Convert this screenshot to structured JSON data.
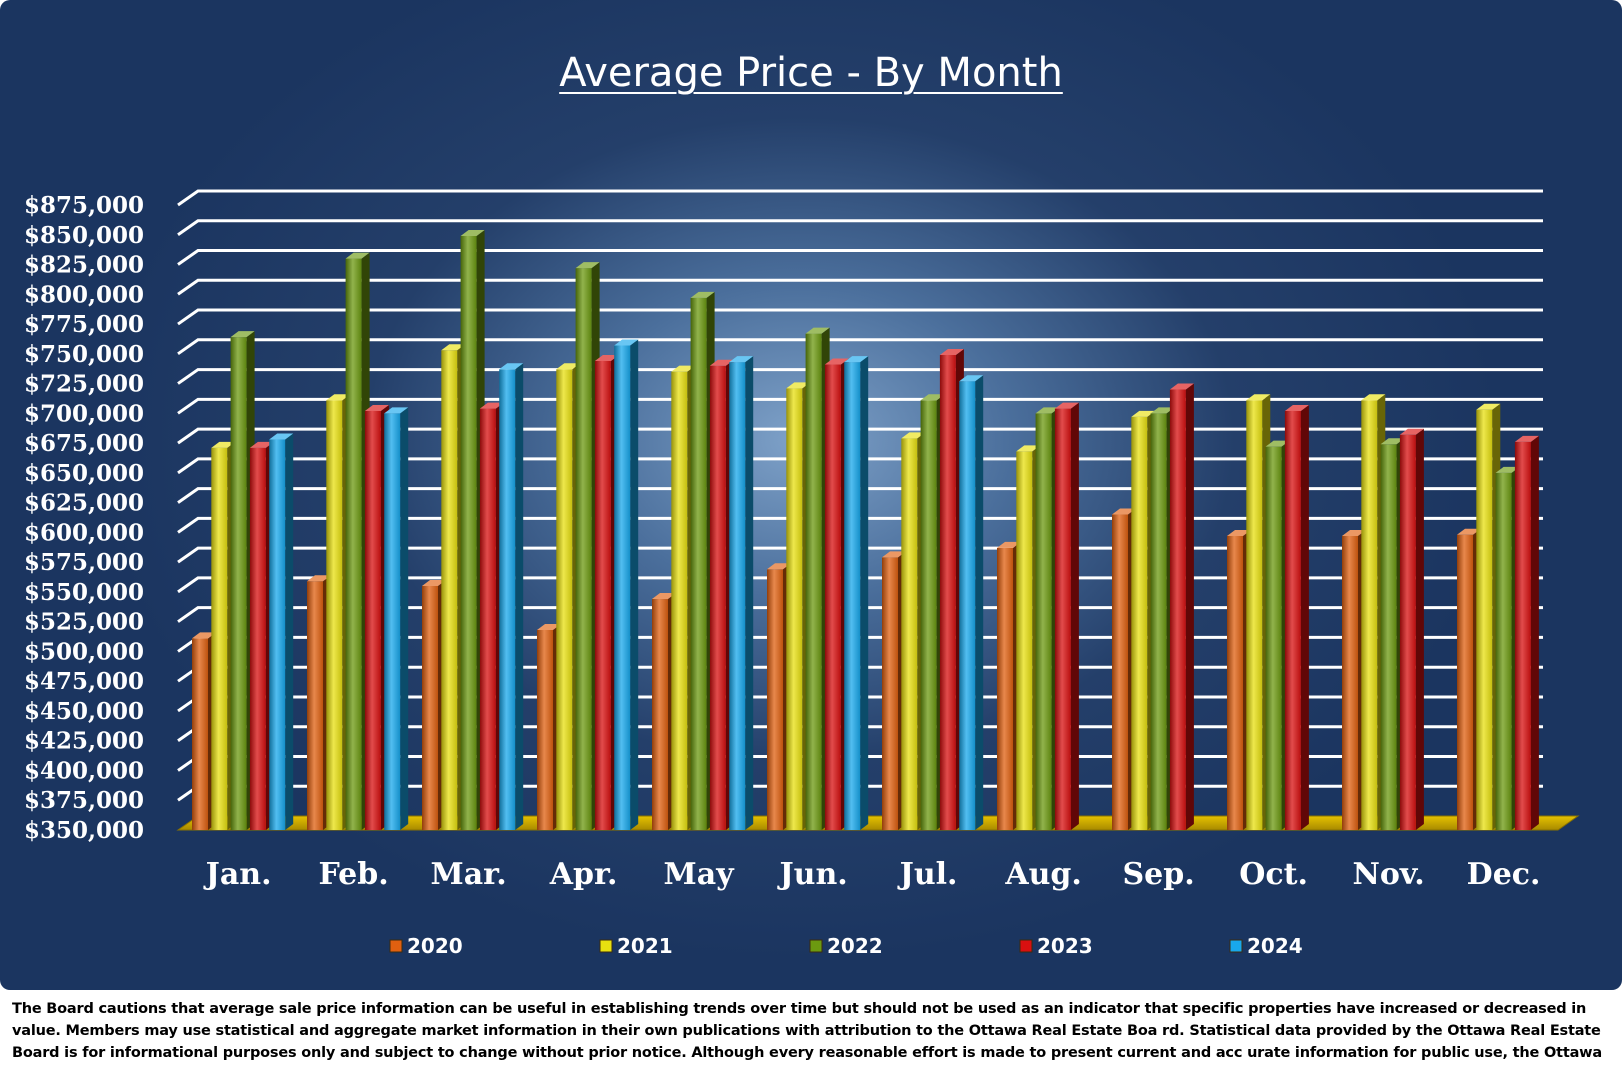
{
  "chart_data": {
    "type": "bar",
    "title": "Average Price - By Month",
    "categories": [
      "Jan.",
      "Feb.",
      "Mar.",
      "Apr.",
      "May",
      "Jun.",
      "Jul.",
      "Aug.",
      "Sep.",
      "Oct.",
      "Nov.",
      "Dec."
    ],
    "y_ticks": [
      "$350,000",
      "$375,000",
      "$400,000",
      "$425,000",
      "$450,000",
      "$475,000",
      "$500,000",
      "$525,000",
      "$550,000",
      "$575,000",
      "$600,000",
      "$625,000",
      "$650,000",
      "$675,000",
      "$700,000",
      "$725,000",
      "$750,000",
      "$775,000",
      "$800,000",
      "$825,000",
      "$850,000",
      "$875,000"
    ],
    "ylim": [
      350000,
      875000
    ],
    "grid": true,
    "legend_position": "bottom",
    "series": [
      {
        "name": "2020",
        "color": "#e06010",
        "values": [
          511000,
          559000,
          555000,
          518000,
          544000,
          569000,
          579000,
          587000,
          615000,
          597000,
          597000,
          598000
        ]
      },
      {
        "name": "2021",
        "color": "#e8e010",
        "values": [
          671000,
          711000,
          753000,
          737000,
          735000,
          721000,
          679000,
          668000,
          697000,
          711000,
          711000,
          703000
        ]
      },
      {
        "name": "2022",
        "color": "#6c9a10",
        "values": [
          764000,
          830000,
          849000,
          822000,
          797000,
          767000,
          711000,
          700000,
          700000,
          672000,
          674000,
          650000
        ]
      },
      {
        "name": "2023",
        "color": "#d81010",
        "values": [
          671000,
          702000,
          704000,
          744000,
          740000,
          741000,
          749000,
          704000,
          720000,
          702000,
          682000,
          676000
        ]
      },
      {
        "name": "2024",
        "color": "#18a8ec",
        "values": [
          678000,
          700000,
          737000,
          757000,
          743000,
          743000,
          727000,
          null,
          null,
          null,
          null,
          null
        ]
      }
    ]
  },
  "disclaimer": "The Board cautions that average sale price information can be useful in establishing trends over time but should not be used  as an indicator that specific properties have increased or decreased in value.   Members may use statistical and aggregate market information in their own publications with attribution to the Ottawa Real Estate Boa rd. Statistical data provided by the Ottawa Real Estate Board is for informational purposes only and subject to change without prior notice. Although every reasonable effort is made to present current and acc urate information for public use, the Ottawa Real Estate Board does not make any"
}
